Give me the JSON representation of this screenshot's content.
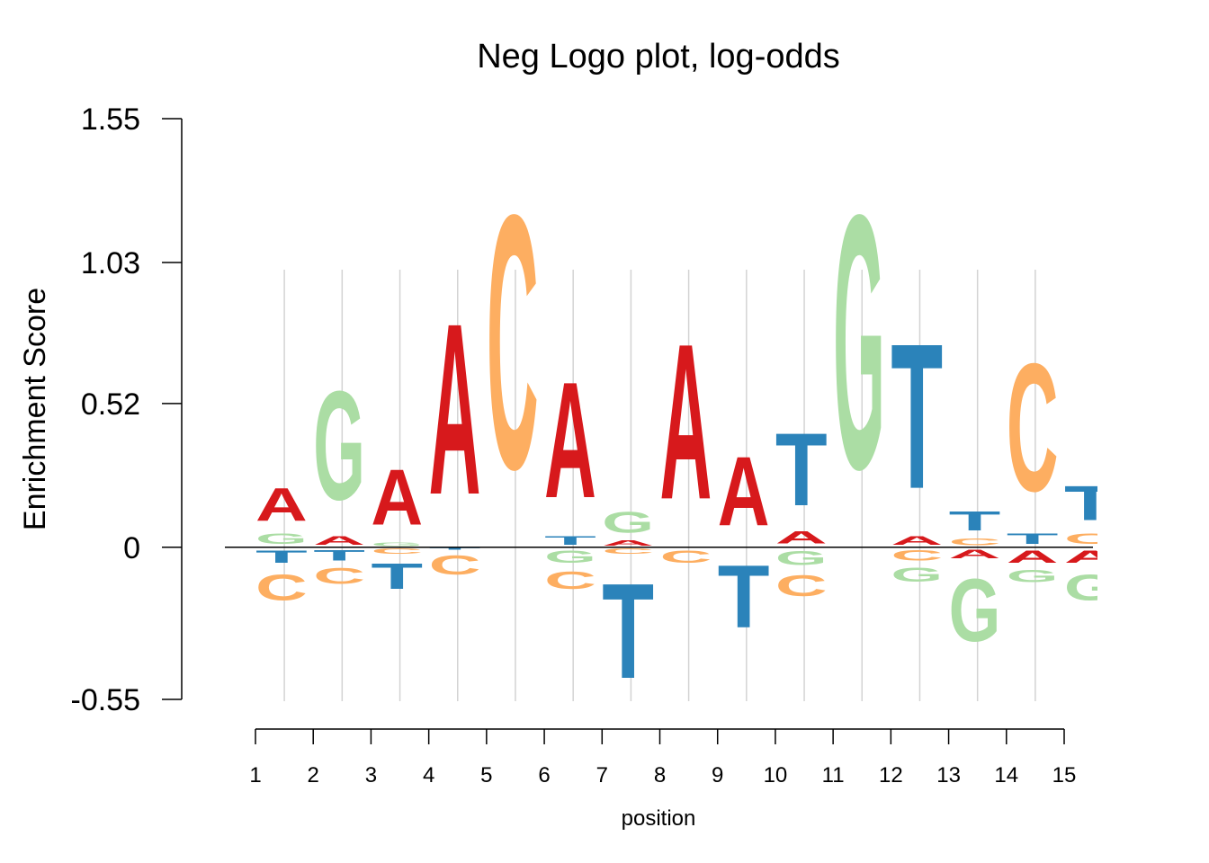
{
  "chart_data": {
    "type": "sequence-logo",
    "title": "Neg Logo plot, log-odds",
    "xlabel": "position",
    "ylabel": "Enrichment Score",
    "ylim": [
      -0.55,
      1.55
    ],
    "yticks": [
      "1.55",
      "1.03",
      "0.52",
      "0",
      "-0.55"
    ],
    "ytick_values": [
      1.55,
      1.03,
      0.52,
      0,
      -0.55
    ],
    "xticks": [
      "1",
      "2",
      "3",
      "4",
      "5",
      "6",
      "7",
      "8",
      "9",
      "10",
      "11",
      "12",
      "13",
      "14",
      "15"
    ],
    "grid": "vertical separators between positions",
    "colors": {
      "A": "#d7191c",
      "C": "#fdae61",
      "G": "#abdda4",
      "T": "#2b83ba"
    },
    "positions": [
      {
        "position": 1,
        "positive": [
          {
            "base": "G",
            "height": 0.06
          },
          {
            "base": "A",
            "height": 0.19
          }
        ],
        "negative": [
          {
            "base": "T",
            "height": 0.07
          },
          {
            "base": "C",
            "height": 0.15
          }
        ]
      },
      {
        "position": 2,
        "positive": [
          {
            "base": "A",
            "height": 0.05
          },
          {
            "base": "G",
            "height": 0.63
          }
        ],
        "negative": [
          {
            "base": "T",
            "height": 0.06
          },
          {
            "base": "C",
            "height": 0.09
          }
        ]
      },
      {
        "position": 3,
        "positive": [
          {
            "base": "G",
            "height": 0.02
          },
          {
            "base": "A",
            "height": 0.32
          }
        ],
        "negative": [
          {
            "base": "C",
            "height": 0.03
          },
          {
            "base": "T",
            "height": 0.15
          }
        ]
      },
      {
        "position": 4,
        "positive": [
          {
            "base": "A",
            "height": 0.99
          }
        ],
        "negative": [
          {
            "base": "T",
            "height": 0.01
          },
          {
            "base": "C",
            "height": 0.11
          }
        ]
      },
      {
        "position": 5,
        "positive": [
          {
            "base": "C",
            "height": 1.47
          }
        ],
        "negative": []
      },
      {
        "position": 6,
        "positive": [
          {
            "base": "T",
            "height": 0.05
          },
          {
            "base": "A",
            "height": 0.67
          }
        ],
        "negative": [
          {
            "base": "G",
            "height": 0.07
          },
          {
            "base": "C",
            "height": 0.1
          }
        ]
      },
      {
        "position": 7,
        "positive": [
          {
            "base": "A",
            "height": 0.03
          },
          {
            "base": "G",
            "height": 0.12
          }
        ],
        "negative": [
          {
            "base": "C",
            "height": 0.03
          },
          {
            "base": "T",
            "height": 0.55
          }
        ]
      },
      {
        "position": 8,
        "positive": [
          {
            "base": "A",
            "height": 0.9
          }
        ],
        "negative": [
          {
            "base": "C",
            "height": 0.07
          }
        ]
      },
      {
        "position": 9,
        "positive": [
          {
            "base": "A",
            "height": 0.4
          }
        ],
        "negative": [
          {
            "base": "T",
            "height": 0.36
          }
        ]
      },
      {
        "position": 10,
        "positive": [
          {
            "base": "A",
            "height": 0.07
          },
          {
            "base": "T",
            "height": 0.42
          }
        ],
        "negative": [
          {
            "base": "G",
            "height": 0.08
          },
          {
            "base": "C",
            "height": 0.12
          }
        ]
      },
      {
        "position": 11,
        "positive": [
          {
            "base": "G",
            "height": 1.47
          }
        ],
        "negative": []
      },
      {
        "position": 12,
        "positive": [
          {
            "base": "A",
            "height": 0.05
          },
          {
            "base": "T",
            "height": 0.84
          }
        ],
        "negative": [
          {
            "base": "C",
            "height": 0.06
          },
          {
            "base": "G",
            "height": 0.08
          }
        ]
      },
      {
        "position": 13,
        "positive": [
          {
            "base": "C",
            "height": 0.04
          },
          {
            "base": "T",
            "height": 0.11
          }
        ],
        "negative": [
          {
            "base": "A",
            "height": 0.05
          },
          {
            "base": "G",
            "height": 0.36
          }
        ]
      },
      {
        "position": 14,
        "positive": [
          {
            "base": "T",
            "height": 0.06
          },
          {
            "base": "C",
            "height": 0.74
          }
        ],
        "negative": [
          {
            "base": "A",
            "height": 0.07
          },
          {
            "base": "G",
            "height": 0.07
          }
        ]
      },
      {
        "position": 15,
        "positive": [
          {
            "base": "C",
            "height": 0.06
          },
          {
            "base": "T",
            "height": 0.2
          }
        ],
        "negative": [
          {
            "base": "A",
            "height": 0.07
          },
          {
            "base": "G",
            "height": 0.15
          }
        ]
      }
    ]
  }
}
